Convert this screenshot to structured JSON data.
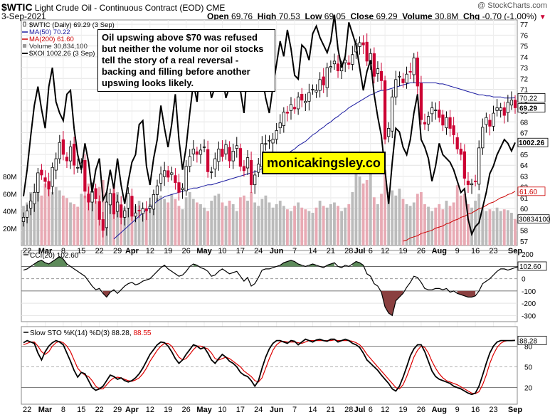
{
  "header": {
    "symbol": "$WTIC",
    "name": "Light Crude Oil - Continuous Contract (EOD)",
    "exchange": "CME",
    "watermark": "@ StockCharts.com",
    "date": "3-Sep-2021",
    "open_label": "Open",
    "open": "69.76",
    "high_label": "High",
    "high": "70.53",
    "low_label": "Low",
    "low": "69.05",
    "close_label": "Close",
    "close": "69.29",
    "volume_label": "Volume",
    "volume": "30.8M",
    "chg_label": "Chg",
    "chg": "-0.70 (-1.00%)",
    "chg_arrow": "▼"
  },
  "legend": [
    {
      "label": "$WTIC (Daily) 69.29 (3 Sep)",
      "color": "#000000",
      "kind": "candle"
    },
    {
      "label": "MA(50) 70.22",
      "color": "#1a1aa0",
      "kind": "line"
    },
    {
      "label": "MA(200) 61.60",
      "color": "#cc0000",
      "kind": "line"
    },
    {
      "label": "Volume 30,834,100",
      "color": "#999999",
      "kind": "box"
    },
    {
      "label": "$XOI 1002.26 (3 Sep)",
      "color": "#000000",
      "kind": "line"
    }
  ],
  "annotation": "Oil upswing above $70 was refused but neither the volume nor oil stocks tell the story of a real reversal - backing and filling before another upswing looks likely.",
  "brand": "monicakingsley.co",
  "colors": {
    "up": "#ffffff",
    "down": "#cc0033",
    "ma50": "#1a1aa0",
    "ma200": "#cc0000",
    "xoi": "#000000",
    "vol_up": "#bbbbbb",
    "vol_down": "#e8aab4",
    "cci_fill_pos": "#5d8a5a",
    "cci_fill_neg": "#8a4040",
    "sto_d": "#dd0000"
  },
  "chart_data": [
    {
      "type": "candlestick",
      "price_ticks": [
        57,
        58,
        59,
        60,
        61,
        62,
        63,
        64,
        65,
        66,
        67,
        68,
        69,
        70,
        71,
        72,
        73,
        74,
        75,
        76,
        77
      ],
      "price_range": [
        56.6,
        77.4
      ],
      "price_tags": [
        {
          "value": 70.22,
          "label": "70.22",
          "style": "outline"
        },
        {
          "value": 69.29,
          "label": "69.29",
          "style": "bold"
        },
        {
          "value": 61.6,
          "label": "61.60",
          "style": "red"
        }
      ],
      "xoi_tag": {
        "value": 1002.26,
        "label": "1002.26"
      },
      "xoi_range": [
        760,
        1300
      ],
      "vol_tag": "30834100",
      "vol_ticks": [
        20,
        40,
        60,
        80
      ],
      "vol_tick_labels": [
        "20M",
        "40M",
        "60M",
        "80M"
      ],
      "vol_max": 110,
      "x_labels": [
        {
          "i": 1,
          "label": "22"
        },
        {
          "i": 6,
          "label": "Mar"
        },
        {
          "i": 11,
          "label": "8"
        },
        {
          "i": 16,
          "label": "15"
        },
        {
          "i": 21,
          "label": "22"
        },
        {
          "i": 26,
          "label": "29"
        },
        {
          "i": 30,
          "label": "Apr"
        },
        {
          "i": 35,
          "label": "12"
        },
        {
          "i": 40,
          "label": "19"
        },
        {
          "i": 45,
          "label": "26"
        },
        {
          "i": 50,
          "label": "May"
        },
        {
          "i": 55,
          "label": "10"
        },
        {
          "i": 60,
          "label": "17"
        },
        {
          "i": 65,
          "label": "24"
        },
        {
          "i": 70,
          "label": "Jun"
        },
        {
          "i": 75,
          "label": "7"
        },
        {
          "i": 80,
          "label": "14"
        },
        {
          "i": 85,
          "label": "21"
        },
        {
          "i": 90,
          "label": "28"
        },
        {
          "i": 93,
          "label": "Jul"
        },
        {
          "i": 96,
          "label": "6"
        },
        {
          "i": 100,
          "label": "12"
        },
        {
          "i": 105,
          "label": "19"
        },
        {
          "i": 110,
          "label": "26"
        },
        {
          "i": 115,
          "label": "Aug"
        },
        {
          "i": 120,
          "label": "9"
        },
        {
          "i": 125,
          "label": "16"
        },
        {
          "i": 130,
          "label": "23"
        },
        {
          "i": 136,
          "label": "Sep"
        }
      ],
      "close": [
        59.2,
        59.8,
        60.7,
        61.5,
        63.3,
        63.1,
        62.5,
        61.8,
        63.8,
        64.6,
        66.1,
        65.0,
        64.4,
        65.7,
        64.0,
        63.8,
        64.2,
        61.6,
        60.6,
        61.6,
        60.9,
        59.0,
        58.0,
        60.6,
        61.4,
        59.5,
        60.6,
        59.2,
        59.8,
        61.4,
        59.3,
        59.6,
        59.8,
        60.0,
        59.8,
        60.2,
        61.3,
        62.1,
        63.2,
        63.5,
        62.9,
        63.3,
        62.4,
        61.5,
        61.9,
        63.9,
        64.8,
        65.5,
        65.0,
        65.4,
        65.7,
        63.4,
        63.4,
        64.6,
        65.5,
        64.8,
        65.9,
        64.4,
        65.3,
        65.8,
        63.9,
        63.5,
        64.7,
        62.2,
        63.1,
        64.1,
        66.0,
        66.0,
        66.3,
        66.4,
        67.2,
        67.9,
        68.9,
        68.8,
        69.6,
        69.2,
        70.3,
        70.0,
        69.9,
        70.7,
        71.0,
        70.9,
        71.9,
        71.4,
        73.0,
        73.1,
        73.6,
        72.7,
        73.2,
        73.7,
        73.3,
        74.2,
        75.2,
        75.3,
        75.1,
        73.6,
        74.3,
        72.2,
        72.9,
        71.8,
        66.4,
        67.4,
        70.3,
        71.9,
        72.2,
        71.6,
        72.4,
        72.6,
        73.9,
        71.3,
        68.2,
        67.8,
        68.5,
        69.3,
        69.1,
        68.4,
        67.7,
        68.4,
        67.4,
        66.8,
        65.5,
        65.0,
        62.8,
        62.2,
        62.3,
        62.5,
        65.6,
        67.5,
        68.4,
        67.6,
        68.8,
        69.3,
        69.3,
        68.6,
        69.8,
        70.0,
        69.3
      ],
      "xoi": [
        860,
        930,
        1020,
        1100,
        1150,
        1090,
        1040,
        1150,
        1200,
        1110,
        1080,
        1060,
        1130,
        1140,
        1040,
        970,
        930,
        1000,
        950,
        870,
        930,
        960,
        850,
        870,
        930,
        880,
        960,
        890,
        840,
        900,
        950,
        970,
        1050,
        1060,
        940,
        890,
        960,
        1010,
        1100,
        1040,
        990,
        1050,
        1130,
        1010,
        930,
        990,
        1080,
        1160,
        1110,
        1220,
        1210,
        1180,
        1120,
        1150,
        1290,
        1180,
        1120,
        1150,
        1300,
        1210,
        1140,
        1080,
        1200,
        1210,
        1290,
        1230,
        1180,
        1120,
        1080,
        1150,
        1210,
        1270,
        1230,
        1300,
        1250,
        1180,
        1170,
        1260,
        1250,
        1220,
        1290,
        1310,
        1280,
        1260,
        1240,
        1270,
        1340,
        1250,
        1200,
        1230,
        1320,
        1290,
        1260,
        1200,
        1140,
        1190,
        1220,
        1130,
        1070,
        1020,
        930,
        840,
        950,
        1040,
        1030,
        990,
        970,
        1010,
        1080,
        1130,
        1010,
        990,
        960,
        900,
        940,
        1000,
        970,
        960,
        950,
        930,
        900,
        870,
        880,
        800,
        760,
        780,
        790,
        830,
        870,
        920,
        940,
        970,
        990,
        1010,
        1000,
        980,
        1002
      ],
      "vol": [
        46,
        50,
        62,
        55,
        66,
        58,
        72,
        75,
        62,
        68,
        64,
        58,
        55,
        50,
        48,
        45,
        60,
        58,
        72,
        56,
        52,
        68,
        76,
        62,
        55,
        70,
        62,
        48,
        44,
        50,
        38,
        46,
        52,
        44,
        42,
        48,
        52,
        55,
        58,
        54,
        50,
        60,
        54,
        46,
        42,
        56,
        62,
        54,
        50,
        48,
        44,
        40,
        52,
        58,
        60,
        50,
        46,
        52,
        48,
        40,
        56,
        58,
        52,
        62,
        50,
        46,
        54,
        58,
        50,
        44,
        48,
        52,
        46,
        42,
        40,
        46,
        50,
        44,
        42,
        40,
        38,
        44,
        52,
        46,
        44,
        48,
        50,
        46,
        40,
        44,
        48,
        62,
        86,
        80,
        72,
        76,
        90,
        56,
        48,
        60,
        88,
        62,
        64,
        58,
        66,
        54,
        48,
        46,
        50,
        60,
        62,
        48,
        45,
        40,
        44,
        48,
        42,
        52,
        46,
        50,
        70,
        58,
        60,
        48,
        44,
        52,
        60,
        44,
        40,
        42,
        40,
        44,
        40,
        42,
        41,
        38,
        30.8
      ],
      "ma50": [
        null,
        null,
        null,
        null,
        null,
        null,
        null,
        null,
        null,
        null,
        null,
        null,
        null,
        null,
        null,
        null,
        null,
        null,
        null,
        null,
        null,
        null,
        null,
        null,
        null,
        57.2,
        57.5,
        57.8,
        58.1,
        58.4,
        58.7,
        59.0,
        59.3,
        59.6,
        59.9,
        60.1,
        60.4,
        60.7,
        60.9,
        61.1,
        61.2,
        61.3,
        61.4,
        61.5,
        61.6,
        61.7,
        61.8,
        61.9,
        61.9,
        62.0,
        62.1,
        62.2,
        62.2,
        62.3,
        62.4,
        62.5,
        62.6,
        62.7,
        62.8,
        62.9,
        63.0,
        63.1,
        63.2,
        63.3,
        63.4,
        63.5,
        63.7,
        63.9,
        64.1,
        64.3,
        64.5,
        64.7,
        64.9,
        65.1,
        65.3,
        65.5,
        65.8,
        66.0,
        66.2,
        66.5,
        66.8,
        67.0,
        67.3,
        67.5,
        67.8,
        68.0,
        68.3,
        68.5,
        68.8,
        69.0,
        69.3,
        69.5,
        69.7,
        69.9,
        70.1,
        70.3,
        70.5,
        70.6,
        70.8,
        70.9,
        70.9,
        71.0,
        71.1,
        71.2,
        71.3,
        71.4,
        71.5,
        71.6,
        71.6,
        71.6,
        71.6,
        71.6,
        71.6,
        71.6,
        71.6,
        71.5,
        71.5,
        71.4,
        71.3,
        71.2,
        71.1,
        71.0,
        70.9,
        70.8,
        70.7,
        70.6,
        70.5,
        70.5,
        70.4,
        70.4,
        70.3,
        70.3,
        70.3,
        70.2,
        70.2,
        70.2,
        70.22
      ],
      "ma200": [
        null,
        null,
        null,
        null,
        null,
        null,
        null,
        null,
        null,
        null,
        null,
        null,
        null,
        null,
        null,
        null,
        null,
        null,
        null,
        null,
        null,
        null,
        null,
        null,
        null,
        null,
        null,
        null,
        null,
        null,
        null,
        null,
        null,
        null,
        null,
        null,
        null,
        null,
        null,
        null,
        null,
        null,
        null,
        null,
        null,
        null,
        null,
        null,
        null,
        null,
        null,
        null,
        null,
        null,
        null,
        null,
        null,
        null,
        null,
        null,
        null,
        null,
        null,
        null,
        null,
        null,
        null,
        null,
        null,
        null,
        null,
        null,
        null,
        null,
        null,
        null,
        null,
        null,
        null,
        null,
        null,
        null,
        null,
        null,
        null,
        null,
        null,
        null,
        null,
        null,
        null,
        null,
        null,
        null,
        null,
        null,
        null,
        null,
        null,
        null,
        null,
        null,
        null,
        null,
        null,
        57.0,
        57.1,
        57.3,
        57.4,
        57.5,
        57.7,
        57.8,
        57.9,
        58.0,
        58.2,
        58.3,
        58.4,
        58.6,
        58.7,
        58.9,
        59.0,
        59.2,
        59.3,
        59.5,
        59.6,
        59.8,
        60.0,
        60.1,
        60.3,
        60.5,
        60.6,
        60.8,
        61.0,
        61.1,
        61.3,
        61.4,
        61.6
      ]
    },
    {
      "type": "line",
      "title": "CCI(20) 102.60",
      "ticks": [
        200,
        100,
        0,
        -100,
        -200,
        -300
      ],
      "range": [
        -350,
        230
      ],
      "tag": {
        "value": 102.6,
        "label": "102.60"
      },
      "values": [
        70,
        80,
        100,
        120,
        140,
        150,
        130,
        120,
        140,
        160,
        180,
        160,
        120,
        100,
        80,
        60,
        40,
        20,
        -20,
        -60,
        -90,
        -80,
        -120,
        -150,
        -110,
        -90,
        -120,
        -90,
        -60,
        -40,
        -30,
        -50,
        -40,
        -20,
        -10,
        0,
        30,
        60,
        90,
        110,
        80,
        60,
        40,
        20,
        30,
        60,
        100,
        120,
        110,
        90,
        80,
        60,
        20,
        30,
        60,
        80,
        60,
        40,
        50,
        60,
        20,
        -20,
        10,
        -60,
        -40,
        10,
        70,
        80,
        80,
        90,
        100,
        110,
        130,
        140,
        150,
        140,
        120,
        110,
        100,
        110,
        120,
        110,
        100,
        90,
        110,
        120,
        130,
        100,
        90,
        110,
        100,
        120,
        140,
        130,
        110,
        40,
        20,
        -40,
        -60,
        -110,
        -230,
        -280,
        -300,
        -180,
        -150,
        -120,
        -70,
        -30,
        20,
        10,
        -30,
        -80,
        -90,
        -90,
        -80,
        -80,
        -90,
        -80,
        -110,
        -100,
        -120,
        -130,
        -140,
        -150,
        -150,
        -140,
        -100,
        -40,
        -20,
        0,
        30,
        60,
        80,
        80,
        70,
        80,
        90,
        100,
        102.6
      ]
    },
    {
      "type": "line",
      "title": "Slow STO %K(14) %D(3) 88.28, 88.55",
      "k_label": "Slow STO %K(14) %D(3) 88.28,",
      "d_label": "88.55",
      "ticks": [
        80,
        50,
        20
      ],
      "range": [
        0,
        100
      ],
      "tag": {
        "value": 88.28,
        "label": "88.28"
      },
      "k": [
        85,
        88,
        86,
        84,
        70,
        60,
        72,
        80,
        85,
        88,
        86,
        82,
        70,
        58,
        45,
        35,
        42,
        40,
        30,
        20,
        16,
        18,
        22,
        30,
        38,
        36,
        32,
        34,
        30,
        28,
        30,
        34,
        40,
        48,
        58,
        68,
        75,
        82,
        86,
        85,
        80,
        72,
        62,
        55,
        60,
        68,
        75,
        82,
        80,
        76,
        78,
        70,
        60,
        55,
        62,
        68,
        64,
        58,
        55,
        50,
        42,
        38,
        36,
        30,
        22,
        30,
        48,
        64,
        76,
        84,
        88,
        88,
        86,
        84,
        88,
        87,
        82,
        86,
        90,
        88,
        86,
        89,
        90,
        88,
        87,
        90,
        90,
        86,
        88,
        90,
        88,
        84,
        82,
        78,
        70,
        60,
        55,
        50,
        45,
        38,
        32,
        26,
        18,
        15,
        22,
        35,
        50,
        66,
        76,
        82,
        82,
        72,
        58,
        44,
        36,
        32,
        30,
        28,
        26,
        22,
        20,
        18,
        15,
        12,
        10,
        12,
        22,
        38,
        55,
        70,
        80,
        86,
        88,
        88,
        88,
        88,
        88.28
      ],
      "d": [
        82,
        84,
        86,
        86,
        80,
        72,
        68,
        72,
        80,
        85,
        87,
        85,
        80,
        72,
        60,
        48,
        42,
        38,
        36,
        30,
        22,
        18,
        18,
        24,
        30,
        34,
        35,
        34,
        32,
        30,
        29,
        31,
        34,
        40,
        48,
        58,
        66,
        74,
        80,
        84,
        84,
        80,
        72,
        64,
        60,
        62,
        68,
        75,
        80,
        80,
        78,
        76,
        70,
        62,
        60,
        62,
        64,
        62,
        58,
        54,
        50,
        44,
        40,
        36,
        30,
        28,
        34,
        48,
        62,
        74,
        82,
        86,
        87,
        86,
        86,
        86,
        85,
        84,
        86,
        88,
        88,
        88,
        88,
        88,
        88,
        88,
        89,
        88,
        88,
        88,
        88,
        87,
        85,
        82,
        76,
        68,
        62,
        56,
        50,
        44,
        38,
        32,
        26,
        20,
        18,
        24,
        36,
        50,
        64,
        74,
        80,
        78,
        70,
        58,
        48,
        40,
        34,
        30,
        28,
        26,
        24,
        21,
        18,
        15,
        12,
        11,
        14,
        24,
        38,
        55,
        68,
        78,
        84,
        87,
        88,
        88,
        88.55
      ]
    }
  ]
}
